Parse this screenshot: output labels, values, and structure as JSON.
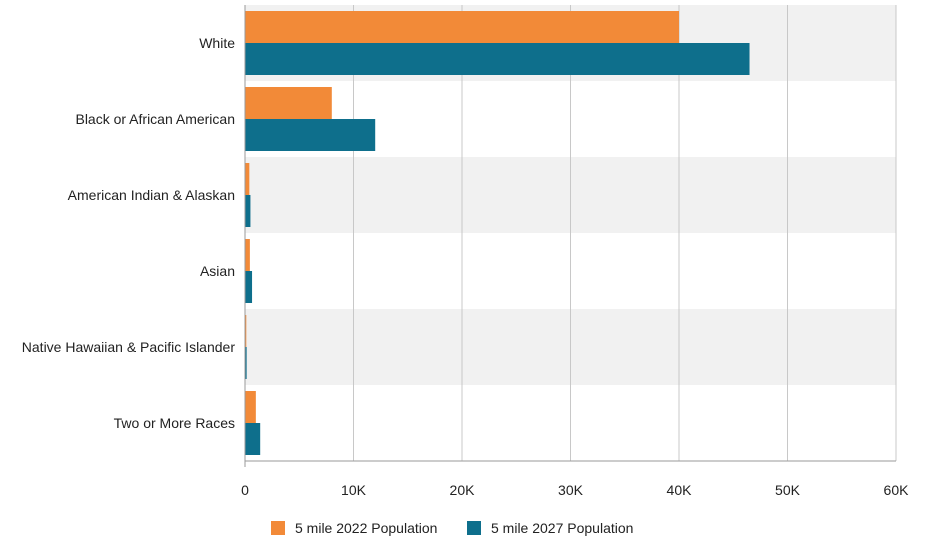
{
  "chart_data": {
    "type": "bar",
    "orientation": "horizontal",
    "categories": [
      "White",
      "Black or African American",
      "American Indian & Alaskan",
      "Asian",
      "Native Hawaiian & Pacific Islander",
      "Two or More Races"
    ],
    "series": [
      {
        "name": "5 mile 2022 Population",
        "color": "#f28a38",
        "values": [
          40000,
          8000,
          400,
          450,
          120,
          1000
        ]
      },
      {
        "name": "5 mile 2027 Population",
        "color": "#0e6f8c",
        "values": [
          46500,
          12000,
          500,
          650,
          150,
          1400
        ]
      }
    ],
    "x_ticks": [
      0,
      10000,
      20000,
      30000,
      40000,
      50000,
      60000
    ],
    "x_tick_labels": [
      "0",
      "10K",
      "20K",
      "30K",
      "40K",
      "50K",
      "60K"
    ],
    "xlim": [
      0,
      60000
    ],
    "grid": true,
    "band_color": "#f1f1f1",
    "grid_color": "#c8c8c8",
    "legend_position": "bottom",
    "title": "",
    "xlabel": "",
    "ylabel": ""
  }
}
